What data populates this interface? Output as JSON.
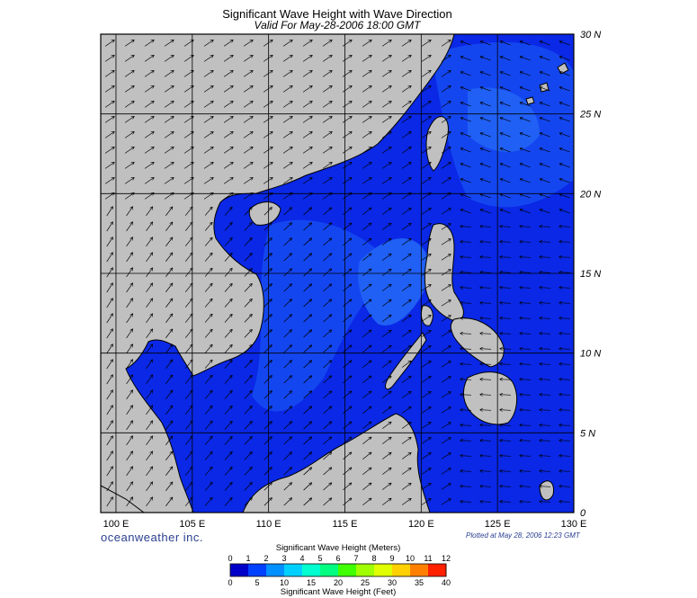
{
  "title": "Significant Wave Height with Wave Direction",
  "subtitle": "Valid For May-28-2006 18:00 GMT",
  "brand": "oceanweather inc.",
  "plotted": "Plotted at May 28, 2006 12:23 GMT",
  "map": {
    "lon_range": [
      99,
      130
    ],
    "lat_range": [
      0,
      30
    ],
    "lon_ticks": [
      "100 E",
      "105 E",
      "110 E",
      "115 E",
      "120 E",
      "125 E",
      "130 E"
    ],
    "lat_ticks": [
      "0",
      "5 N",
      "10 N",
      "15 N",
      "20 N",
      "25 N",
      "30 N"
    ],
    "land_color": "#c0c0c0",
    "ocean_colors": [
      "#0000c8",
      "#0a28e6",
      "#1446f0",
      "#2060f4"
    ],
    "arrow_color": "#000000"
  },
  "colorbar": {
    "meters_title": "Significant Wave Height (Meters)",
    "feet_title": "Significant Wave Height (Feet)",
    "meters_ticks": [
      "0",
      "1",
      "2",
      "3",
      "4",
      "5",
      "6",
      "7",
      "8",
      "9",
      "10",
      "11",
      "12"
    ],
    "feet_ticks": [
      "0",
      "5",
      "10",
      "15",
      "20",
      "25",
      "30",
      "35",
      "40"
    ],
    "colors": [
      "#0000c8",
      "#0040ff",
      "#0090ff",
      "#00d0ff",
      "#00ffd0",
      "#00ff80",
      "#40ff00",
      "#a0ff00",
      "#e0ff00",
      "#ffd000",
      "#ff8000",
      "#ff2000"
    ]
  }
}
